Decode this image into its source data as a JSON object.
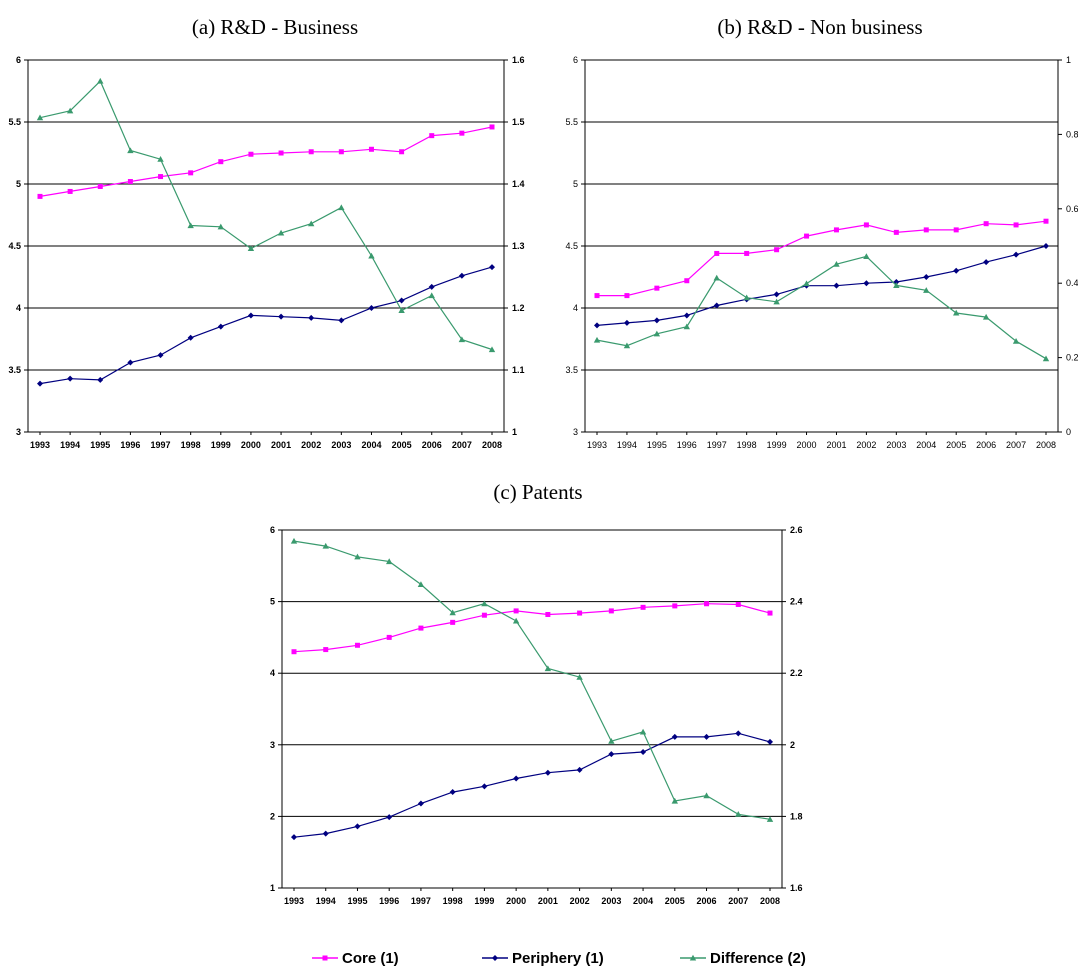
{
  "chart_data": [
    {
      "type": "line",
      "id": "a",
      "title": "(a)   R&D - Business",
      "categories": [
        "1993",
        "1994",
        "1995",
        "1996",
        "1997",
        "1998",
        "1999",
        "2000",
        "2001",
        "2002",
        "2003",
        "2004",
        "2005",
        "2006",
        "2007",
        "2008"
      ],
      "ylim": [
        3,
        6
      ],
      "yticks": [
        "3",
        "3.5",
        "4",
        "4.5",
        "5",
        "5.5",
        "6"
      ],
      "y2lim": [
        1,
        1.6
      ],
      "y2ticks": [
        "1",
        "1.1",
        "1.2",
        "1.3",
        "1.4",
        "1.5",
        "1.6"
      ],
      "tick_bold": true,
      "series": [
        {
          "name": "Core (1)",
          "axis": "left",
          "color": "#ff00ff",
          "marker": "square",
          "values": [
            4.9,
            4.94,
            4.98,
            5.02,
            5.06,
            5.09,
            5.18,
            5.24,
            5.25,
            5.26,
            5.26,
            5.28,
            5.26,
            5.39,
            5.41,
            5.46
          ]
        },
        {
          "name": "Periphery (1)",
          "axis": "left",
          "color": "#000080",
          "marker": "diamond",
          "values": [
            3.39,
            3.43,
            3.42,
            3.56,
            3.62,
            3.76,
            3.85,
            3.94,
            3.93,
            3.92,
            3.9,
            4.0,
            4.06,
            4.17,
            4.26,
            4.33
          ]
        },
        {
          "name": "Difference (2)",
          "axis": "right",
          "color": "#3a9a6e",
          "marker": "triangle",
          "values": [
            1.507,
            1.518,
            1.566,
            1.454,
            1.44,
            1.333,
            1.331,
            1.296,
            1.321,
            1.336,
            1.362,
            1.284,
            1.196,
            1.22,
            1.149,
            1.133
          ]
        }
      ]
    },
    {
      "type": "line",
      "id": "b",
      "title": "(b)   R&D - Non business",
      "categories": [
        "1993",
        "1994",
        "1995",
        "1996",
        "1997",
        "1998",
        "1999",
        "2000",
        "2001",
        "2002",
        "2003",
        "2004",
        "2005",
        "2006",
        "2007",
        "2008"
      ],
      "ylim": [
        3,
        6
      ],
      "yticks": [
        "3",
        "3.5",
        "4",
        "4.5",
        "5",
        "5.5",
        "6"
      ],
      "y2lim": [
        0,
        1
      ],
      "y2ticks": [
        "0",
        "0.2",
        "0.4",
        "0.6",
        "0.8",
        "1"
      ],
      "tick_bold": false,
      "series": [
        {
          "name": "Core (1)",
          "axis": "left",
          "color": "#ff00ff",
          "marker": "square",
          "values": [
            4.1,
            4.1,
            4.16,
            4.22,
            4.44,
            4.44,
            4.47,
            4.58,
            4.63,
            4.67,
            4.61,
            4.63,
            4.63,
            4.68,
            4.67,
            4.7
          ]
        },
        {
          "name": "Periphery (1)",
          "axis": "left",
          "color": "#000080",
          "marker": "diamond",
          "values": [
            3.86,
            3.88,
            3.9,
            3.94,
            4.02,
            4.07,
            4.11,
            4.18,
            4.18,
            4.2,
            4.21,
            4.25,
            4.3,
            4.37,
            4.43,
            4.5
          ]
        },
        {
          "name": "Difference (2)",
          "axis": "right",
          "color": "#3a9a6e",
          "marker": "triangle",
          "values": [
            0.247,
            0.232,
            0.264,
            0.283,
            0.414,
            0.361,
            0.35,
            0.399,
            0.451,
            0.472,
            0.394,
            0.381,
            0.32,
            0.309,
            0.244,
            0.197
          ]
        }
      ]
    },
    {
      "type": "line",
      "id": "c",
      "title": "(c)   Patents",
      "categories": [
        "1993",
        "1994",
        "1995",
        "1996",
        "1997",
        "1998",
        "1999",
        "2000",
        "2001",
        "2002",
        "2003",
        "2004",
        "2005",
        "2006",
        "2007",
        "2008"
      ],
      "ylim": [
        1,
        6
      ],
      "yticks": [
        "1",
        "2",
        "3",
        "4",
        "5",
        "6"
      ],
      "y2lim": [
        1.6,
        2.6
      ],
      "y2ticks": [
        "1.6",
        "1.8",
        "2",
        "2.2",
        "2.4",
        "2.6"
      ],
      "tick_bold": true,
      "series": [
        {
          "name": "Core (1)",
          "axis": "left",
          "color": "#ff00ff",
          "marker": "square",
          "values": [
            4.3,
            4.33,
            4.39,
            4.5,
            4.63,
            4.71,
            4.81,
            4.87,
            4.82,
            4.84,
            4.87,
            4.92,
            4.94,
            4.97,
            4.96,
            4.84
          ]
        },
        {
          "name": "Periphery (1)",
          "axis": "left",
          "color": "#000080",
          "marker": "diamond",
          "values": [
            1.71,
            1.76,
            1.86,
            1.99,
            2.18,
            2.34,
            2.42,
            2.53,
            2.61,
            2.65,
            2.87,
            2.9,
            3.11,
            3.11,
            3.16,
            3.04
          ]
        },
        {
          "name": "Difference (2)",
          "axis": "right",
          "color": "#3a9a6e",
          "marker": "triangle",
          "values": [
            2.569,
            2.555,
            2.525,
            2.512,
            2.448,
            2.369,
            2.394,
            2.346,
            2.213,
            2.189,
            2.01,
            2.036,
            1.843,
            1.858,
            1.806,
            1.792
          ]
        }
      ]
    }
  ],
  "legend": {
    "items": [
      {
        "label": "Core (1)",
        "color": "#ff00ff",
        "marker": "square"
      },
      {
        "label": "Periphery (1)",
        "color": "#000080",
        "marker": "diamond"
      },
      {
        "label": "Difference (2)",
        "color": "#3a9a6e",
        "marker": "triangle"
      }
    ]
  }
}
